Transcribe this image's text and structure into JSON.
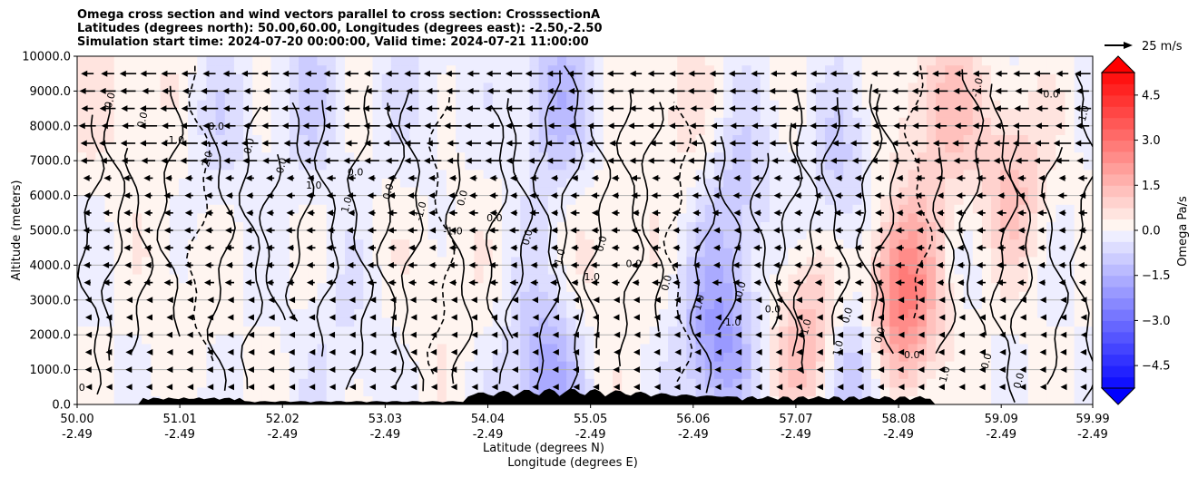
{
  "header": {
    "title_line1": "Omega cross section and wind vectors parallel to cross section: CrosssectionA",
    "title_line2": "Latitudes (degrees north): 50.00,60.00, Longitudes (degrees east): -2.50,-2.50",
    "title_line3": "Simulation start time: 2024-07-20 00:00:00, Valid time: 2024-07-21 11:00:00"
  },
  "chart_data": {
    "type": "heatmap",
    "xlabel_line1": "Latitude (degrees N)",
    "xlabel_line2": "Longitude (degrees E)",
    "ylabel": "Altitude (meters)",
    "ylim": [
      0,
      10000
    ],
    "xlim": [
      50.0,
      59.99
    ],
    "grid": "horizontal",
    "y_ticks": [
      "0.0",
      "1000.0",
      "2000.0",
      "3000.0",
      "4000.0",
      "5000.0",
      "6000.0",
      "7000.0",
      "8000.0",
      "9000.0",
      "10000.0"
    ],
    "x_ticks": [
      {
        "lat": "50.00",
        "lon": "-2.49"
      },
      {
        "lat": "51.01",
        "lon": "-2.49"
      },
      {
        "lat": "52.02",
        "lon": "-2.49"
      },
      {
        "lat": "53.03",
        "lon": "-2.49"
      },
      {
        "lat": "54.04",
        "lon": "-2.49"
      },
      {
        "lat": "55.05",
        "lon": "-2.49"
      },
      {
        "lat": "56.06",
        "lon": "-2.49"
      },
      {
        "lat": "57.07",
        "lon": "-2.49"
      },
      {
        "lat": "58.08",
        "lon": "-2.49"
      },
      {
        "lat": "59.09",
        "lon": "-2.49"
      },
      {
        "lat": "59.99",
        "lon": "-2.49"
      }
    ],
    "colorbar": {
      "label": "Omega Pa/s",
      "range": [
        -5.25,
        5.25
      ],
      "tick_labels": [
        "4.5",
        "3.0",
        "1.5",
        "0.0",
        "−1.5",
        "−3.0",
        "−4.5"
      ],
      "low_color": "#0000ff",
      "high_color": "#ff0000"
    },
    "quiver_key": {
      "label": "25 m/s",
      "speed": 25
    },
    "contour_labels": [
      "0.0",
      "0.0",
      "0.0",
      "0.0",
      "0.0",
      "0.0",
      "0.0",
      "0.0",
      "0.0",
      "0.0",
      "0.0",
      "0.0",
      "0.0",
      "0.0",
      "0.0",
      "0.0",
      "0.0",
      "0.0",
      "0.0",
      "0.0",
      "0.0",
      "0.0",
      "-1.0",
      "-1.0",
      "-1.0",
      "1.0",
      "1.0",
      "1.0",
      "1.0",
      "1.0",
      "-1.0",
      "1.0",
      "2.0",
      "1.0",
      "-1.0",
      "1.0",
      "-1.0"
    ],
    "omega_fields": [
      {
        "lat": 50.1,
        "z": 8500,
        "v": 0.3
      },
      {
        "lat": 50.6,
        "z": 9200,
        "v": 0.4
      },
      {
        "lat": 51.4,
        "z": 8000,
        "v": -0.5
      },
      {
        "lat": 52.3,
        "z": 9000,
        "v": -0.7
      },
      {
        "lat": 53.4,
        "z": 9300,
        "v": -0.4
      },
      {
        "lat": 54.7,
        "z": 8700,
        "v": -1.3
      },
      {
        "lat": 55.9,
        "z": 8500,
        "v": 0.6
      },
      {
        "lat": 56.5,
        "z": 6000,
        "v": -0.9
      },
      {
        "lat": 57.5,
        "z": 6500,
        "v": -0.8
      },
      {
        "lat": 58.5,
        "z": 8500,
        "v": 1.3
      },
      {
        "lat": 58.1,
        "z": 3000,
        "v": 3.0
      },
      {
        "lat": 56.3,
        "z": 1800,
        "v": -2.0
      },
      {
        "lat": 57.2,
        "z": 2000,
        "v": 1.5
      },
      {
        "lat": 59.2,
        "z": 6500,
        "v": 1.2
      },
      {
        "lat": 54.6,
        "z": 700,
        "v": -1.8
      },
      {
        "lat": 55.2,
        "z": 3800,
        "v": 0.5
      },
      {
        "lat": 53.6,
        "z": 3500,
        "v": 0.4
      },
      {
        "lat": 51.0,
        "z": 4000,
        "v": 0.3
      },
      {
        "lat": 52.6,
        "z": 1500,
        "v": -0.4
      },
      {
        "lat": 57.7,
        "z": 1000,
        "v": -1.5
      }
    ],
    "wind_u": [
      {
        "z_band": "upper",
        "u": -18
      },
      {
        "z_band": "middle",
        "u": -10
      },
      {
        "z_band": "lower",
        "u": -5
      }
    ]
  }
}
